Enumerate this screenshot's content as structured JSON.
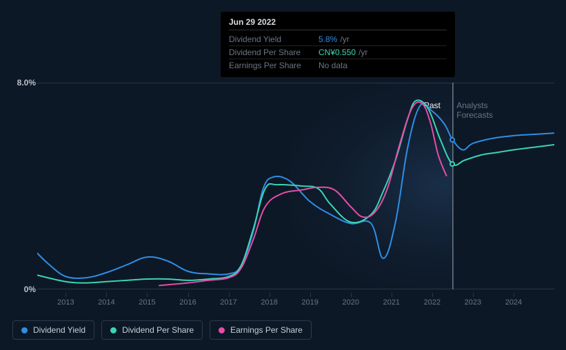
{
  "tooltip": {
    "date": "Jun 29 2022",
    "rows": [
      {
        "label": "Dividend Yield",
        "value": "5.8%",
        "unit": "/yr",
        "color": "#2e8fe6"
      },
      {
        "label": "Dividend Per Share",
        "value": "CN¥0.550",
        "unit": "/yr",
        "color": "#3ad6b4"
      },
      {
        "label": "Earnings Per Share",
        "value": "No data",
        "unit": "",
        "color": "#6a7684"
      }
    ]
  },
  "chart": {
    "type": "line",
    "background_color": "#0d1826",
    "grid_color": "#2a3645",
    "text_color": "#6a7684",
    "y_axis": {
      "min": 0,
      "max": 8,
      "ticks": [
        {
          "v": 8,
          "label": "8.0%"
        },
        {
          "v": 0,
          "label": "0%"
        }
      ]
    },
    "x_axis": {
      "min": 2012.3,
      "max": 2025,
      "ticks": [
        2013,
        2014,
        2015,
        2016,
        2017,
        2018,
        2019,
        2020,
        2021,
        2022,
        2023,
        2024
      ]
    },
    "cursor_x": 2022.5,
    "past_future_divider": 2022.5,
    "spotlight": {
      "from": 2018.5,
      "to": 2022.5
    },
    "region_labels": {
      "past": {
        "text": "Past",
        "color": "#ffffff",
        "x": 2022.0
      },
      "future": {
        "text": "Analysts Forecasts",
        "color": "#6a7684",
        "x": 2023.4
      }
    },
    "series": [
      {
        "name": "Dividend Yield",
        "color": "#2e8fe6",
        "width": 2,
        "points": [
          [
            2012.3,
            1.4
          ],
          [
            2012.6,
            0.95
          ],
          [
            2013,
            0.5
          ],
          [
            2013.5,
            0.45
          ],
          [
            2014,
            0.65
          ],
          [
            2014.5,
            0.95
          ],
          [
            2015,
            1.25
          ],
          [
            2015.5,
            1.1
          ],
          [
            2016,
            0.7
          ],
          [
            2016.5,
            0.6
          ],
          [
            2017,
            0.6
          ],
          [
            2017.3,
            0.9
          ],
          [
            2017.6,
            2.2
          ],
          [
            2017.85,
            3.9
          ],
          [
            2018.1,
            4.35
          ],
          [
            2018.5,
            4.2
          ],
          [
            2019,
            3.4
          ],
          [
            2019.5,
            2.9
          ],
          [
            2020,
            2.55
          ],
          [
            2020.5,
            2.55
          ],
          [
            2020.8,
            1.2
          ],
          [
            2021.1,
            2.6
          ],
          [
            2021.4,
            5.5
          ],
          [
            2021.7,
            7.1
          ],
          [
            2022,
            6.9
          ],
          [
            2022.3,
            6.4
          ],
          [
            2022.5,
            5.8
          ],
          [
            2022.75,
            5.4
          ],
          [
            2023,
            5.65
          ],
          [
            2023.5,
            5.85
          ],
          [
            2024,
            5.95
          ],
          [
            2024.5,
            6.0
          ],
          [
            2025,
            6.05
          ]
        ],
        "endpoint_marker": {
          "x": 2022.5,
          "y": 5.8
        }
      },
      {
        "name": "Dividend Per Share",
        "color": "#3ad6b4",
        "width": 2,
        "points": [
          [
            2012.3,
            0.55
          ],
          [
            2013,
            0.3
          ],
          [
            2013.5,
            0.25
          ],
          [
            2014,
            0.3
          ],
          [
            2014.5,
            0.35
          ],
          [
            2015,
            0.4
          ],
          [
            2015.5,
            0.4
          ],
          [
            2016,
            0.35
          ],
          [
            2016.5,
            0.4
          ],
          [
            2017,
            0.5
          ],
          [
            2017.3,
            0.9
          ],
          [
            2017.6,
            2.3
          ],
          [
            2017.9,
            3.9
          ],
          [
            2018.2,
            4.05
          ],
          [
            2018.8,
            4.0
          ],
          [
            2019.2,
            3.9
          ],
          [
            2019.5,
            3.3
          ],
          [
            2020,
            2.6
          ],
          [
            2020.5,
            2.9
          ],
          [
            2020.8,
            3.8
          ],
          [
            2021.1,
            5.0
          ],
          [
            2021.4,
            6.6
          ],
          [
            2021.6,
            7.3
          ],
          [
            2021.9,
            7.0
          ],
          [
            2022.2,
            5.8
          ],
          [
            2022.5,
            4.85
          ],
          [
            2022.8,
            5.0
          ],
          [
            2023.2,
            5.2
          ],
          [
            2023.6,
            5.3
          ],
          [
            2024,
            5.4
          ],
          [
            2024.5,
            5.5
          ],
          [
            2025,
            5.6
          ]
        ],
        "endpoint_marker": {
          "x": 2022.5,
          "y": 4.85
        }
      },
      {
        "name": "Earnings Per Share",
        "color": "#e64da8",
        "width": 2,
        "points": [
          [
            2015.3,
            0.15
          ],
          [
            2016,
            0.25
          ],
          [
            2016.5,
            0.35
          ],
          [
            2017,
            0.45
          ],
          [
            2017.3,
            0.8
          ],
          [
            2017.6,
            1.9
          ],
          [
            2017.9,
            3.2
          ],
          [
            2018.3,
            3.7
          ],
          [
            2018.8,
            3.85
          ],
          [
            2019.2,
            3.95
          ],
          [
            2019.6,
            3.85
          ],
          [
            2020,
            3.2
          ],
          [
            2020.3,
            2.8
          ],
          [
            2020.6,
            3.0
          ],
          [
            2020.9,
            3.9
          ],
          [
            2021.2,
            5.6
          ],
          [
            2021.5,
            7.0
          ],
          [
            2021.75,
            7.2
          ],
          [
            2021.95,
            6.5
          ],
          [
            2022.15,
            5.2
          ],
          [
            2022.35,
            4.4
          ]
        ]
      }
    ],
    "legend": [
      {
        "label": "Dividend Yield",
        "color": "#2e8fe6"
      },
      {
        "label": "Dividend Per Share",
        "color": "#3ad6b4"
      },
      {
        "label": "Earnings Per Share",
        "color": "#e64da8"
      }
    ]
  }
}
